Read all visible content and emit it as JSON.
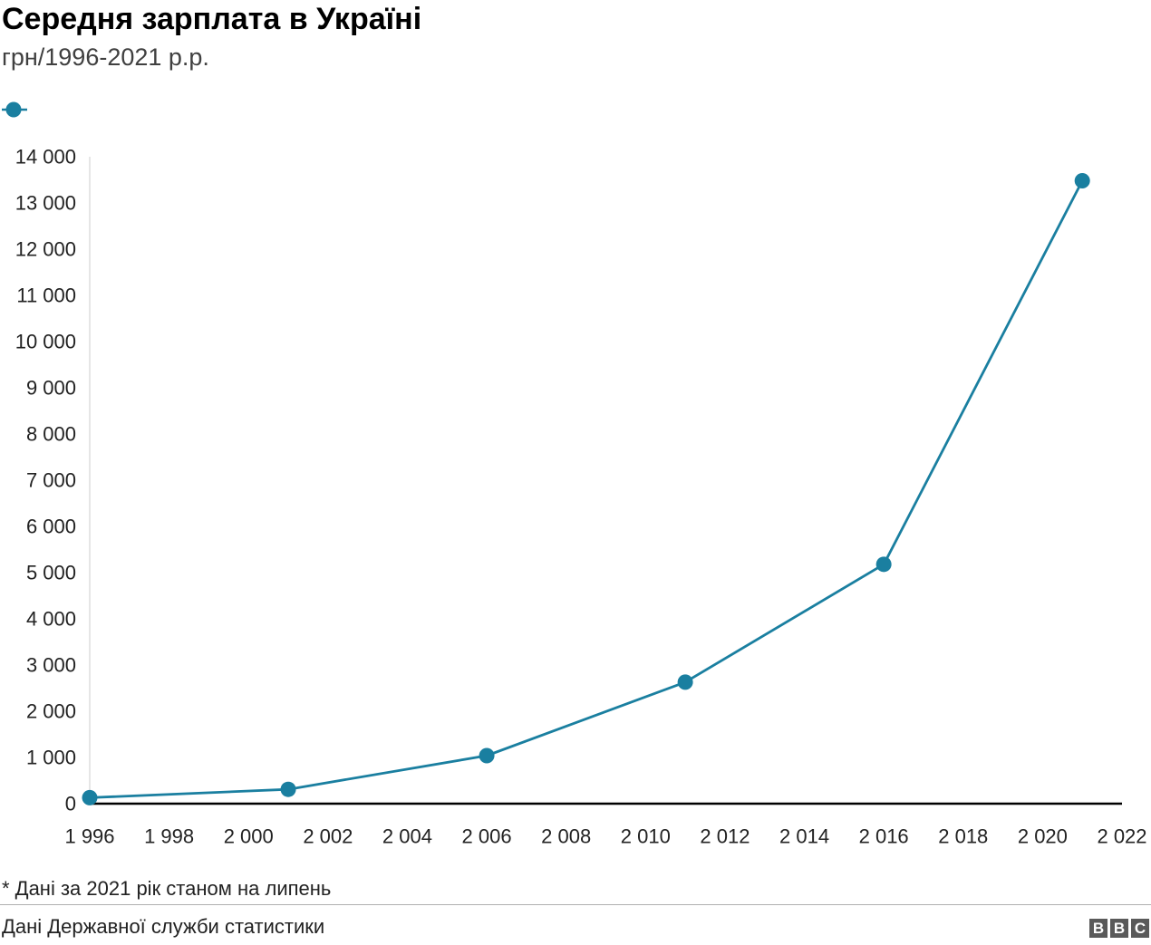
{
  "chart_data": {
    "type": "line",
    "title": "Середня зарплата в Україні",
    "subtitle": "грн/1996-2021 р.р.",
    "series": [
      {
        "color": "#1a7fa0",
        "x": [
          1996,
          2001,
          2006,
          2011,
          2016,
          2021
        ],
        "values": [
          130,
          310,
          1040,
          2630,
          5180,
          13480
        ]
      }
    ],
    "x_ticks": [
      1996,
      1998,
      2000,
      2002,
      2004,
      2006,
      2008,
      2010,
      2012,
      2014,
      2016,
      2018,
      2020,
      2022
    ],
    "x_tick_labels": [
      "1 996",
      "1 998",
      "2 000",
      "2 002",
      "2 004",
      "2 006",
      "2 008",
      "2 010",
      "2 012",
      "2 014",
      "2 016",
      "2 018",
      "2 020",
      "2 022"
    ],
    "y_ticks": [
      0,
      1000,
      2000,
      3000,
      4000,
      5000,
      6000,
      7000,
      8000,
      9000,
      10000,
      11000,
      12000,
      13000,
      14000
    ],
    "y_tick_labels": [
      "0",
      "1 000",
      "2 000",
      "3 000",
      "4 000",
      "5 000",
      "6 000",
      "7 000",
      "8 000",
      "9 000",
      "10 000",
      "11 000",
      "12 000",
      "13 000",
      "14 000"
    ],
    "xlim": [
      1996,
      2022
    ],
    "ylim": [
      0,
      14000
    ],
    "grid": false,
    "legend": "top-left",
    "note": "* Дані за 2021 рік станом на липень",
    "source": "Дані Державної служби статистики"
  },
  "brand": {
    "letters": [
      "B",
      "B",
      "C"
    ],
    "color": "#5a5a5a"
  }
}
